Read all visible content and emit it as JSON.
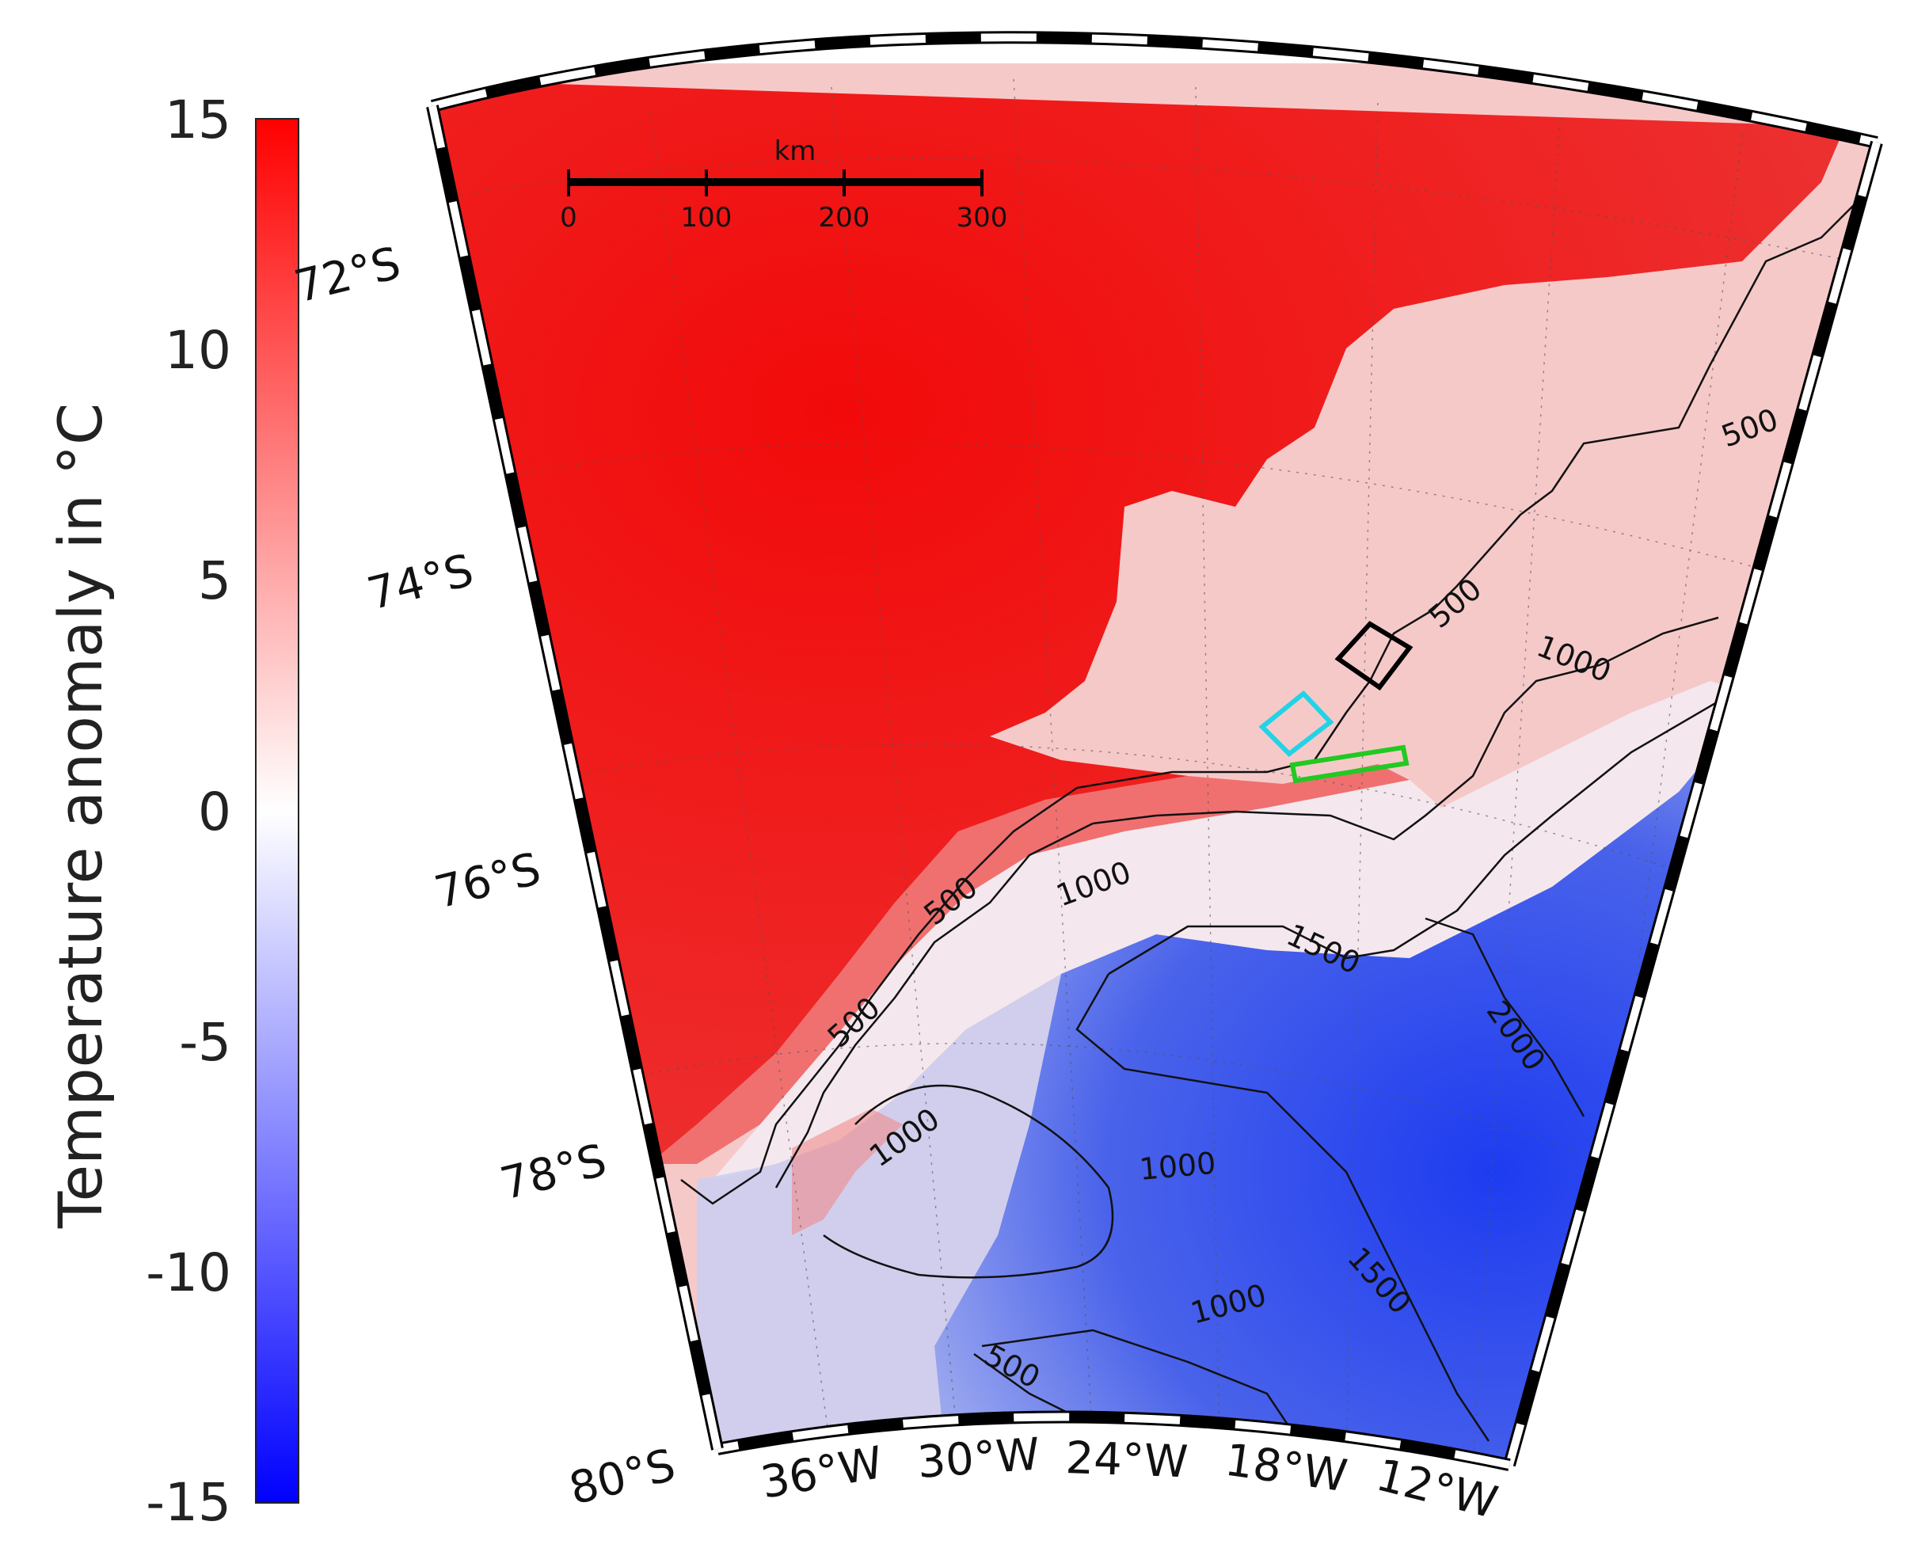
{
  "colorbar": {
    "label": "Temperature anomaly in °C",
    "ticks": [
      "15",
      "10",
      "5",
      "0",
      "-5",
      "-10",
      "-15"
    ],
    "min": -15,
    "max": 15,
    "colors": {
      "high": "#ff0000",
      "mid": "#ffffff",
      "low": "#0000ff"
    }
  },
  "map": {
    "latitude_labels": [
      "72°S",
      "74°S",
      "76°S",
      "78°S",
      "80°S"
    ],
    "longitude_labels": [
      "36°W",
      "30°W",
      "24°W",
      "18°W",
      "12°W"
    ],
    "scale_bar": {
      "unit": "km",
      "ticks": [
        "0",
        "100",
        "200",
        "300"
      ]
    },
    "isobath_labels": [
      "500",
      "500",
      "1000",
      "500",
      "1000",
      "1500",
      "500",
      "1000",
      "2000",
      "1000",
      "1500",
      "1000",
      "500"
    ],
    "boxes": [
      {
        "name": "black-box",
        "color": "#000000"
      },
      {
        "name": "cyan-box",
        "color": "#22d3e6"
      },
      {
        "name": "green-box",
        "color": "#22c922"
      }
    ]
  }
}
